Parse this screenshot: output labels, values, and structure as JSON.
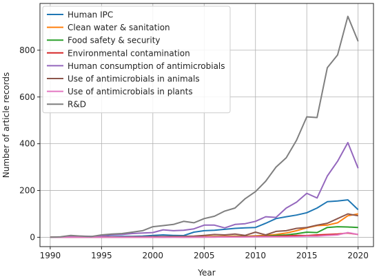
{
  "chart_data": {
    "type": "line",
    "title": "",
    "xlabel": "Year",
    "ylabel": "Number of article records",
    "xlim": [
      1989,
      2021.5
    ],
    "ylim": [
      -40,
      1000
    ],
    "xticks": [
      1990,
      1995,
      2000,
      2005,
      2010,
      2015,
      2020
    ],
    "yticks": [
      0,
      200,
      400,
      600,
      800
    ],
    "grid": true,
    "legend_position": "top-left",
    "x": [
      1990,
      1991,
      1992,
      1993,
      1994,
      1995,
      1996,
      1997,
      1998,
      1999,
      2000,
      2001,
      2002,
      2003,
      2004,
      2005,
      2006,
      2007,
      2008,
      2009,
      2010,
      2011,
      2012,
      2013,
      2014,
      2015,
      2016,
      2017,
      2018,
      2019,
      2020
    ],
    "series": [
      {
        "name": "Human IPC",
        "color": "#1f77b4",
        "values": [
          0,
          0,
          2,
          1,
          0,
          2,
          3,
          4,
          4,
          5,
          8,
          10,
          8,
          7,
          22,
          28,
          30,
          34,
          38,
          40,
          42,
          60,
          80,
          88,
          95,
          105,
          125,
          152,
          155,
          160,
          118
        ]
      },
      {
        "name": "Clean water & sanitation",
        "color": "#ff7f0e",
        "values": [
          0,
          0,
          0,
          0,
          0,
          0,
          1,
          0,
          1,
          1,
          2,
          1,
          2,
          1,
          3,
          3,
          4,
          4,
          5,
          4,
          6,
          8,
          12,
          18,
          28,
          40,
          50,
          52,
          62,
          92,
          100
        ]
      },
      {
        "name": "Food safety & security",
        "color": "#2ca02c",
        "values": [
          0,
          0,
          0,
          0,
          0,
          0,
          0,
          0,
          0,
          0,
          1,
          0,
          1,
          0,
          1,
          1,
          2,
          2,
          3,
          3,
          4,
          5,
          8,
          10,
          15,
          22,
          20,
          42,
          45,
          44,
          42
        ]
      },
      {
        "name": "Environmental contamination",
        "color": "#d62728",
        "values": [
          0,
          0,
          0,
          0,
          0,
          0,
          0,
          0,
          0,
          0,
          0,
          0,
          1,
          0,
          1,
          1,
          1,
          2,
          2,
          2,
          3,
          4,
          4,
          6,
          8,
          7,
          10,
          12,
          14,
          18,
          12
        ]
      },
      {
        "name": "Human consumption of antimicrobials",
        "color": "#9467bd",
        "values": [
          0,
          0,
          2,
          5,
          4,
          6,
          10,
          12,
          16,
          18,
          20,
          32,
          28,
          30,
          36,
          52,
          52,
          40,
          55,
          58,
          68,
          88,
          85,
          125,
          150,
          188,
          168,
          262,
          325,
          405,
          295
        ]
      },
      {
        "name": "Use of antimicrobials in animals",
        "color": "#8c564b",
        "values": [
          0,
          0,
          0,
          0,
          0,
          0,
          1,
          1,
          2,
          2,
          3,
          3,
          4,
          4,
          5,
          8,
          12,
          10,
          14,
          8,
          22,
          10,
          25,
          28,
          38,
          42,
          52,
          60,
          80,
          100,
          92
        ]
      },
      {
        "name": "Use of antimicrobials in plants",
        "color": "#e377c2",
        "values": [
          0,
          0,
          0,
          0,
          0,
          0,
          0,
          0,
          0,
          0,
          0,
          0,
          0,
          0,
          0,
          1,
          1,
          1,
          1,
          1,
          2,
          2,
          2,
          2,
          3,
          5,
          5,
          8,
          10,
          20,
          12
        ]
      },
      {
        "name": "R&D",
        "color": "#7f7f7f",
        "values": [
          0,
          2,
          8,
          5,
          3,
          10,
          14,
          16,
          22,
          28,
          45,
          50,
          55,
          68,
          62,
          80,
          90,
          112,
          125,
          165,
          195,
          240,
          300,
          340,
          415,
          515,
          512,
          725,
          780,
          945,
          838
        ]
      }
    ]
  }
}
